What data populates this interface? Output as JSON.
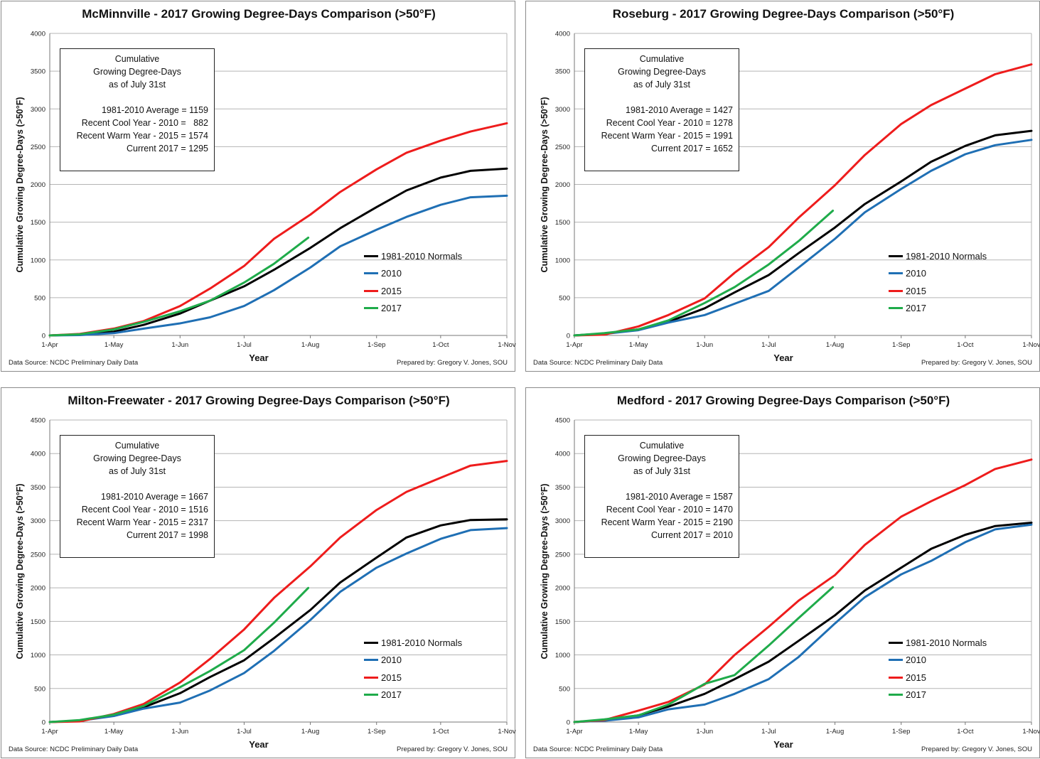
{
  "chart_data": [
    {
      "type": "line",
      "title": "McMinnville - 2017 Growing Degree-Days Comparison (>50°F)",
      "xlabel": "Year",
      "ylabel": "Cumulative Growing Degree-Days (>50°F)",
      "x_ticks": [
        "1-Apr",
        "1-May",
        "1-Jun",
        "1-Jul",
        "1-Aug",
        "1-Sep",
        "1-Oct",
        "1-Nov"
      ],
      "ylim": [
        0,
        4000
      ],
      "y_ticks": [
        0,
        500,
        1000,
        1500,
        2000,
        2500,
        3000,
        3500,
        4000
      ],
      "box": {
        "header": [
          "Cumulative",
          "Growing Degree-Days",
          "as of July 31st"
        ],
        "lines": [
          "1981-2010 Average = 1159",
          "Recent Cool Year - 2010 =   882",
          "Recent Warm Year - 2015 = 1574",
          "Current 2017 = 1295"
        ]
      },
      "legend_position": "right, lower-middle",
      "series": [
        {
          "name": "1981-2010 Normals",
          "color": "#000000",
          "x": [
            "04-01",
            "04-15",
            "05-01",
            "05-15",
            "06-01",
            "06-15",
            "07-01",
            "07-15",
            "08-01",
            "08-15",
            "09-01",
            "09-15",
            "10-01",
            "10-15",
            "11-01"
          ],
          "y": [
            0,
            12,
            50,
            140,
            290,
            460,
            650,
            870,
            1160,
            1420,
            1700,
            1920,
            2090,
            2180,
            2210
          ]
        },
        {
          "name": "2010",
          "color": "#1f6fb4",
          "x": [
            "04-01",
            "04-15",
            "05-01",
            "05-15",
            "06-01",
            "06-15",
            "07-01",
            "07-15",
            "08-01",
            "08-15",
            "09-01",
            "09-15",
            "10-01",
            "10-15",
            "11-01"
          ],
          "y": [
            0,
            5,
            30,
            90,
            160,
            240,
            390,
            600,
            900,
            1180,
            1400,
            1570,
            1730,
            1830,
            1850
          ]
        },
        {
          "name": "2015",
          "color": "#ee1c1c",
          "x": [
            "04-01",
            "04-15",
            "05-01",
            "05-15",
            "06-01",
            "06-15",
            "07-01",
            "07-15",
            "08-01",
            "08-15",
            "09-01",
            "09-15",
            "10-01",
            "10-15",
            "11-01"
          ],
          "y": [
            0,
            20,
            90,
            190,
            390,
            620,
            920,
            1280,
            1600,
            1900,
            2200,
            2420,
            2580,
            2700,
            2810
          ]
        },
        {
          "name": "2017",
          "color": "#1fab4a",
          "x": [
            "04-01",
            "04-15",
            "05-01",
            "05-15",
            "06-01",
            "06-15",
            "07-01",
            "07-15",
            "07-31"
          ],
          "y": [
            0,
            15,
            80,
            180,
            320,
            460,
            700,
            950,
            1295
          ]
        }
      ]
    },
    {
      "type": "line",
      "title": "Roseburg - 2017 Growing Degree-Days Comparison (>50°F)",
      "xlabel": "Year",
      "ylabel": "Cumulative Growing Degree-Days (>50°F)",
      "x_ticks": [
        "1-Apr",
        "1-May",
        "1-Jun",
        "1-Jul",
        "1-Aug",
        "1-Sep",
        "1-Oct",
        "1-Nov"
      ],
      "ylim": [
        0,
        4000
      ],
      "y_ticks": [
        0,
        500,
        1000,
        1500,
        2000,
        2500,
        3000,
        3500,
        4000
      ],
      "box": {
        "header": [
          "Cumulative",
          "Growing Degree-Days",
          "as of July 31st"
        ],
        "lines": [
          "1981-2010 Average = 1427",
          "Recent Cool Year - 2010 = 1278",
          "Recent Warm Year - 2015 = 1991",
          "Current 2017 = 1652"
        ]
      },
      "legend_position": "right, lower-middle",
      "series": [
        {
          "name": "1981-2010 Normals",
          "color": "#000000",
          "x": [
            "04-01",
            "04-15",
            "05-01",
            "05-15",
            "06-01",
            "06-15",
            "07-01",
            "07-15",
            "08-01",
            "08-15",
            "09-01",
            "09-15",
            "10-01",
            "10-15",
            "11-01"
          ],
          "y": [
            0,
            25,
            80,
            180,
            360,
            570,
            800,
            1090,
            1430,
            1740,
            2040,
            2300,
            2510,
            2650,
            2710
          ]
        },
        {
          "name": "2010",
          "color": "#1f6fb4",
          "x": [
            "04-01",
            "04-15",
            "05-01",
            "05-15",
            "06-01",
            "06-15",
            "07-01",
            "07-15",
            "08-01",
            "08-15",
            "09-01",
            "09-15",
            "10-01",
            "10-15",
            "11-01"
          ],
          "y": [
            0,
            20,
            70,
            170,
            270,
            420,
            590,
            900,
            1280,
            1630,
            1940,
            2180,
            2400,
            2520,
            2590
          ]
        },
        {
          "name": "2015",
          "color": "#ee1c1c",
          "x": [
            "04-01",
            "04-15",
            "05-01",
            "05-15",
            "06-01",
            "06-15",
            "07-01",
            "07-15",
            "08-01",
            "08-15",
            "09-01",
            "09-15",
            "10-01",
            "10-15",
            "11-01"
          ],
          "y": [
            0,
            10,
            120,
            270,
            490,
            830,
            1170,
            1560,
            1990,
            2390,
            2800,
            3050,
            3270,
            3460,
            3590
          ]
        },
        {
          "name": "2017",
          "color": "#1fab4a",
          "x": [
            "04-01",
            "04-15",
            "05-01",
            "05-15",
            "06-01",
            "06-15",
            "07-01",
            "07-15",
            "07-31"
          ],
          "y": [
            0,
            30,
            80,
            200,
            430,
            640,
            940,
            1250,
            1652
          ]
        }
      ]
    },
    {
      "type": "line",
      "title": "Milton-Freewater - 2017 Growing Degree-Days Comparison (>50°F)",
      "xlabel": "Year",
      "ylabel": "Cumulative Growing Degree-Days (>50°F)",
      "x_ticks": [
        "1-Apr",
        "1-May",
        "1-Jun",
        "1-Jul",
        "1-Aug",
        "1-Sep",
        "1-Oct",
        "1-Nov"
      ],
      "ylim": [
        0,
        4500
      ],
      "y_ticks": [
        0,
        500,
        1000,
        1500,
        2000,
        2500,
        3000,
        3500,
        4000,
        4500
      ],
      "box": {
        "header": [
          "Cumulative",
          "Growing Degree-Days",
          "as of July 31st"
        ],
        "lines": [
          "1981-2010 Average = 1667",
          "Recent Cool Year - 2010 = 1516",
          "Recent Warm Year - 2015 = 2317",
          "Current 2017 = 1998"
        ]
      },
      "legend_position": "right, lower-middle",
      "series": [
        {
          "name": "1981-2010 Normals",
          "color": "#000000",
          "x": [
            "04-01",
            "04-15",
            "05-01",
            "05-15",
            "06-01",
            "06-15",
            "07-01",
            "07-15",
            "08-01",
            "08-15",
            "09-01",
            "09-15",
            "10-01",
            "10-15",
            "11-01"
          ],
          "y": [
            0,
            20,
            100,
            220,
            430,
            670,
            920,
            1250,
            1670,
            2080,
            2450,
            2750,
            2930,
            3010,
            3020
          ]
        },
        {
          "name": "2010",
          "color": "#1f6fb4",
          "x": [
            "04-01",
            "04-15",
            "05-01",
            "05-15",
            "06-01",
            "06-15",
            "07-01",
            "07-15",
            "08-01",
            "08-15",
            "09-01",
            "09-15",
            "10-01",
            "10-15",
            "11-01"
          ],
          "y": [
            0,
            20,
            90,
            200,
            290,
            470,
            730,
            1060,
            1520,
            1940,
            2300,
            2510,
            2730,
            2860,
            2890
          ]
        },
        {
          "name": "2015",
          "color": "#ee1c1c",
          "x": [
            "04-01",
            "04-15",
            "05-01",
            "05-15",
            "06-01",
            "06-15",
            "07-01",
            "07-15",
            "08-01",
            "08-15",
            "09-01",
            "09-15",
            "10-01",
            "10-15",
            "11-01"
          ],
          "y": [
            0,
            10,
            120,
            270,
            590,
            940,
            1380,
            1850,
            2320,
            2750,
            3160,
            3430,
            3640,
            3820,
            3890
          ]
        },
        {
          "name": "2017",
          "color": "#1fab4a",
          "x": [
            "04-01",
            "04-15",
            "05-01",
            "05-15",
            "06-01",
            "06-15",
            "07-01",
            "07-15",
            "07-31"
          ],
          "y": [
            0,
            30,
            110,
            240,
            520,
            760,
            1070,
            1480,
            1998
          ]
        }
      ]
    },
    {
      "type": "line",
      "title": "Medford - 2017 Growing Degree-Days Comparison (>50°F)",
      "xlabel": "Year",
      "ylabel": "Cumulative Growing Degree-Days (>50°F)",
      "x_ticks": [
        "1-Apr",
        "1-May",
        "1-Jun",
        "1-Jul",
        "1-Aug",
        "1-Sep",
        "1-Oct",
        "1-Nov"
      ],
      "ylim": [
        0,
        4500
      ],
      "y_ticks": [
        0,
        500,
        1000,
        1500,
        2000,
        2500,
        3000,
        3500,
        4000,
        4500
      ],
      "box": {
        "header": [
          "Cumulative",
          "Growing Degree-Days",
          "as of July 31st"
        ],
        "lines": [
          "1981-2010 Average = 1587",
          "Recent Cool Year - 2010 = 1470",
          "Recent Warm Year - 2015 = 2190",
          "Current 2017 = 2010"
        ]
      },
      "legend_position": "right, lower-middle",
      "series": [
        {
          "name": "1981-2010 Normals",
          "color": "#000000",
          "x": [
            "04-01",
            "04-15",
            "05-01",
            "05-15",
            "06-01",
            "06-15",
            "07-01",
            "07-15",
            "08-01",
            "08-15",
            "09-01",
            "09-15",
            "10-01",
            "10-15",
            "11-01"
          ],
          "y": [
            0,
            30,
            100,
            230,
            420,
            640,
            900,
            1210,
            1590,
            1960,
            2300,
            2580,
            2790,
            2920,
            2970
          ]
        },
        {
          "name": "2010",
          "color": "#1f6fb4",
          "x": [
            "04-01",
            "04-15",
            "05-01",
            "05-15",
            "06-01",
            "06-15",
            "07-01",
            "07-15",
            "08-01",
            "08-15",
            "09-01",
            "09-15",
            "10-01",
            "10-15",
            "11-01"
          ],
          "y": [
            0,
            20,
            70,
            190,
            260,
            420,
            640,
            970,
            1470,
            1860,
            2200,
            2400,
            2680,
            2870,
            2940
          ]
        },
        {
          "name": "2015",
          "color": "#ee1c1c",
          "x": [
            "04-01",
            "04-15",
            "05-01",
            "05-15",
            "06-01",
            "06-15",
            "07-01",
            "07-15",
            "08-01",
            "08-15",
            "09-01",
            "09-15",
            "10-01",
            "10-15",
            "11-01"
          ],
          "y": [
            0,
            30,
            170,
            300,
            560,
            1000,
            1420,
            1810,
            2190,
            2640,
            3060,
            3290,
            3530,
            3770,
            3910
          ]
        },
        {
          "name": "2017",
          "color": "#1fab4a",
          "x": [
            "04-01",
            "04-15",
            "05-01",
            "05-15",
            "06-01",
            "06-15",
            "07-01",
            "07-15",
            "07-31"
          ],
          "y": [
            0,
            40,
            100,
            260,
            570,
            700,
            1140,
            1550,
            2010
          ]
        }
      ]
    }
  ],
  "footer": {
    "source": "Data Source: NCDC Preliminary Daily Data",
    "prepared": "Prepared by: Gregory V. Jones, SOU"
  }
}
